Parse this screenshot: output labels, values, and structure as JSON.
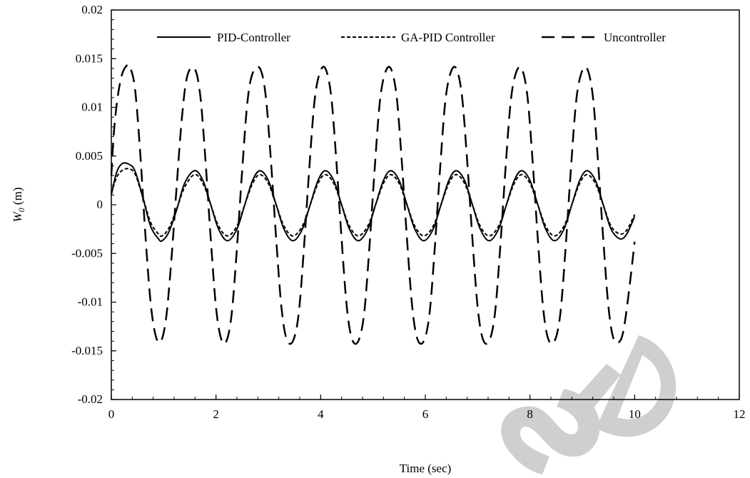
{
  "chart_data": {
    "type": "line",
    "xlabel": "Time (sec)",
    "ylabel_main": "W",
    "ylabel_sub": "0",
    "ylabel_unit": " (m)",
    "xlim": [
      0,
      12
    ],
    "ylim": [
      -0.02,
      0.02
    ],
    "xticks": [
      0,
      2,
      4,
      6,
      8,
      10,
      12
    ],
    "xtick_labels": [
      "0",
      "2",
      "4",
      "6",
      "8",
      "10",
      "12"
    ],
    "yticks": [
      0.02,
      0.015,
      0.01,
      0.005,
      0,
      -0.005,
      -0.01,
      -0.015,
      -0.02
    ],
    "ytick_labels": [
      "0.02",
      "0.015",
      "0.01",
      "0.005",
      "0",
      "-0.005",
      "-0.01",
      "-0.015",
      "-0.02"
    ],
    "grid": false,
    "legend_position": "top",
    "series": [
      {
        "name": "PID-Controller",
        "dash": "solid",
        "x": [
          0,
          0.1,
          0.2,
          0.32,
          0.45,
          0.6,
          0.75,
          0.9,
          0.97,
          1.1,
          1.25,
          1.4,
          1.59,
          1.75,
          1.9,
          2.05,
          2.22,
          2.4,
          2.55,
          2.7,
          2.84,
          3.0,
          3.15,
          3.3,
          3.47,
          3.65,
          3.8,
          3.95,
          4.09,
          4.25,
          4.4,
          4.55,
          4.72,
          4.9,
          5.05,
          5.2,
          5.34,
          5.5,
          5.65,
          5.8,
          5.97,
          6.15,
          6.3,
          6.45,
          6.59,
          6.75,
          6.9,
          7.05,
          7.22,
          7.4,
          7.55,
          7.7,
          7.84,
          8.0,
          8.15,
          8.3,
          8.47,
          8.65,
          8.8,
          8.95,
          9.09,
          9.25,
          9.4,
          9.55,
          9.72,
          9.85,
          10.0
        ],
        "y": [
          0.001,
          0.0033,
          0.0042,
          0.0042,
          0.0035,
          0.0008,
          -0.0022,
          -0.0035,
          -0.0037,
          -0.0028,
          -0.0005,
          0.0022,
          0.0035,
          0.0025,
          0.0,
          -0.0025,
          -0.0037,
          -0.0025,
          0.0,
          0.0025,
          0.0035,
          0.0025,
          0.0,
          -0.0025,
          -0.0037,
          -0.0025,
          0.0,
          0.0025,
          0.0035,
          0.0025,
          0.0,
          -0.0025,
          -0.0037,
          -0.0025,
          0.0,
          0.0025,
          0.0035,
          0.0025,
          0.0,
          -0.0025,
          -0.0037,
          -0.0025,
          0.0,
          0.0025,
          0.0035,
          0.0025,
          0.0,
          -0.0025,
          -0.0037,
          -0.0025,
          0.0,
          0.0025,
          0.0035,
          0.0025,
          0.0,
          -0.0025,
          -0.0037,
          -0.0025,
          0.0,
          0.0025,
          0.0035,
          0.0025,
          0.0,
          -0.0025,
          -0.0035,
          -0.003,
          -0.0012
        ]
      },
      {
        "name": "GA-PID Controller",
        "dash": "short",
        "x": [
          0,
          0.1,
          0.2,
          0.32,
          0.45,
          0.6,
          0.75,
          0.9,
          0.97,
          1.1,
          1.25,
          1.4,
          1.59,
          1.75,
          1.9,
          2.05,
          2.22,
          2.4,
          2.55,
          2.7,
          2.84,
          3.0,
          3.15,
          3.3,
          3.47,
          3.65,
          3.8,
          3.95,
          4.09,
          4.25,
          4.4,
          4.55,
          4.72,
          4.9,
          5.05,
          5.2,
          5.34,
          5.5,
          5.65,
          5.8,
          5.97,
          6.15,
          6.3,
          6.45,
          6.59,
          6.75,
          6.9,
          7.05,
          7.22,
          7.4,
          7.55,
          7.7,
          7.84,
          8.0,
          8.15,
          8.3,
          8.47,
          8.65,
          8.8,
          8.95,
          9.09,
          9.25,
          9.4,
          9.55,
          9.72,
          9.85,
          10.0
        ],
        "y": [
          0.0012,
          0.0028,
          0.0035,
          0.0037,
          0.0032,
          0.0008,
          -0.0018,
          -0.003,
          -0.0032,
          -0.0024,
          -0.0004,
          0.0018,
          0.0031,
          0.0022,
          0.0,
          -0.0022,
          -0.0032,
          -0.0022,
          0.0,
          0.0022,
          0.0031,
          0.0022,
          0.0,
          -0.0022,
          -0.0032,
          -0.0022,
          0.0,
          0.0022,
          0.0031,
          0.0022,
          0.0,
          -0.0022,
          -0.0032,
          -0.0022,
          0.0,
          0.0022,
          0.0031,
          0.0022,
          0.0,
          -0.0022,
          -0.0032,
          -0.0022,
          0.0,
          0.0022,
          0.0031,
          0.0022,
          0.0,
          -0.0022,
          -0.0032,
          -0.0022,
          0.0,
          0.0022,
          0.0031,
          0.0022,
          0.0,
          -0.0022,
          -0.0032,
          -0.0022,
          0.0,
          0.0022,
          0.0031,
          0.0022,
          0.0,
          -0.0022,
          -0.003,
          -0.0026,
          -0.001
        ]
      },
      {
        "name": "Uncontroller",
        "dash": "long",
        "x": [
          0,
          0.05,
          0.12,
          0.2,
          0.28,
          0.35,
          0.45,
          0.55,
          0.65,
          0.75,
          0.85,
          0.95,
          1.05,
          1.15,
          1.25,
          1.35,
          1.45,
          1.59,
          1.7,
          1.8,
          1.9,
          2.0,
          2.1,
          2.2,
          2.3,
          2.4,
          2.5,
          2.6,
          2.7,
          2.84,
          2.95,
          3.05,
          3.15,
          3.25,
          3.35,
          3.47,
          3.58,
          3.68,
          3.78,
          3.88,
          3.98,
          4.09,
          4.2,
          4.3,
          4.4,
          4.5,
          4.6,
          4.72,
          4.83,
          4.93,
          5.03,
          5.13,
          5.23,
          5.34,
          5.45,
          5.55,
          5.65,
          5.75,
          5.85,
          5.97,
          6.08,
          6.18,
          6.28,
          6.38,
          6.48,
          6.59,
          6.7,
          6.8,
          6.9,
          7.0,
          7.1,
          7.22,
          7.33,
          7.43,
          7.53,
          7.63,
          7.73,
          7.84,
          7.95,
          8.05,
          8.15,
          8.25,
          8.35,
          8.47,
          8.58,
          8.68,
          8.78,
          8.88,
          8.98,
          9.09,
          9.2,
          9.3,
          9.4,
          9.5,
          9.6,
          9.72,
          9.8,
          9.9,
          10.0
        ],
        "y": [
          0.003,
          0.0075,
          0.011,
          0.0133,
          0.0142,
          0.0142,
          0.012,
          0.0055,
          -0.003,
          -0.01,
          -0.0135,
          -0.014,
          -0.0115,
          -0.0055,
          0.002,
          0.009,
          0.0132,
          0.014,
          0.0112,
          0.0045,
          -0.0035,
          -0.0105,
          -0.0138,
          -0.014,
          -0.0112,
          -0.0045,
          0.0035,
          0.0105,
          0.0135,
          0.014,
          0.0112,
          0.0045,
          -0.0035,
          -0.0105,
          -0.0138,
          -0.014,
          -0.0112,
          -0.0045,
          0.0035,
          0.0105,
          0.0135,
          0.014,
          0.0112,
          0.0045,
          -0.0035,
          -0.0105,
          -0.0138,
          -0.014,
          -0.0112,
          -0.0045,
          0.0035,
          0.0105,
          0.0135,
          0.014,
          0.0112,
          0.0045,
          -0.0035,
          -0.0105,
          -0.0138,
          -0.014,
          -0.0112,
          -0.0045,
          0.0035,
          0.0105,
          0.0135,
          0.014,
          0.0112,
          0.0045,
          -0.0035,
          -0.0105,
          -0.0138,
          -0.014,
          -0.0112,
          -0.0045,
          0.0035,
          0.0105,
          0.0135,
          0.014,
          0.0112,
          0.0045,
          -0.0035,
          -0.0105,
          -0.0138,
          -0.014,
          -0.0112,
          -0.0045,
          0.0035,
          0.0105,
          0.0135,
          0.014,
          0.0112,
          0.0045,
          -0.0035,
          -0.0105,
          -0.0138,
          -0.014,
          -0.0125,
          -0.0085,
          -0.0038
        ]
      }
    ]
  },
  "colors": {
    "line": "#000000",
    "watermark": "#cfcfcf",
    "background": "#ffffff"
  }
}
